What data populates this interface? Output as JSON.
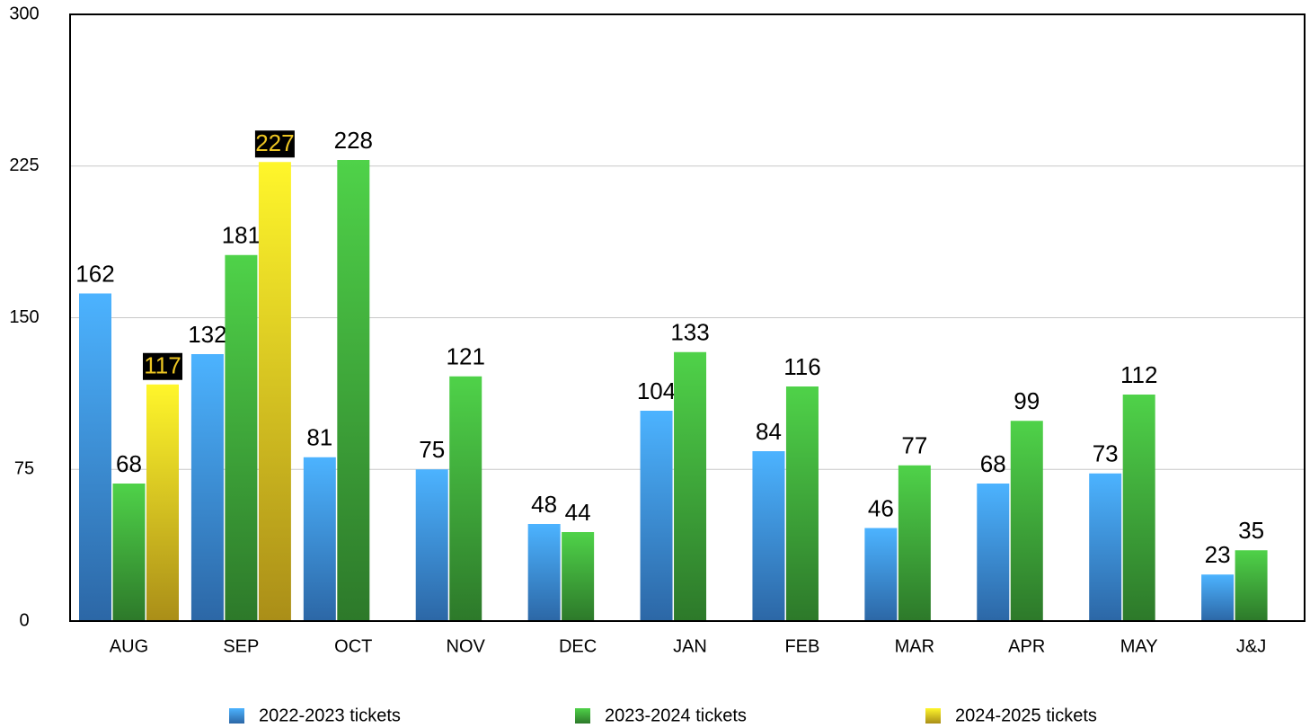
{
  "chart_data": {
    "type": "bar",
    "categories": [
      "AUG",
      "SEP",
      "OCT",
      "NOV",
      "DEC",
      "JAN",
      "FEB",
      "MAR",
      "APR",
      "MAY",
      "J&J"
    ],
    "series": [
      {
        "name": "2022-2023 tickets",
        "color": "#3d8fe6",
        "values": [
          162,
          132,
          81,
          75,
          48,
          104,
          84,
          46,
          68,
          73,
          23
        ]
      },
      {
        "name": "2023-2024 tickets",
        "color": "#3fa83a",
        "values": [
          68,
          181,
          228,
          121,
          44,
          133,
          116,
          77,
          99,
          112,
          35
        ]
      },
      {
        "name": "2024-2025 tickets",
        "color": "#ecc522",
        "values": [
          117,
          227,
          null,
          null,
          null,
          null,
          null,
          null,
          null,
          null,
          null
        ]
      }
    ],
    "ylim": [
      0,
      300
    ],
    "yticks": [
      0,
      75,
      150,
      225,
      300
    ],
    "grid": true,
    "legend": "bottom"
  }
}
